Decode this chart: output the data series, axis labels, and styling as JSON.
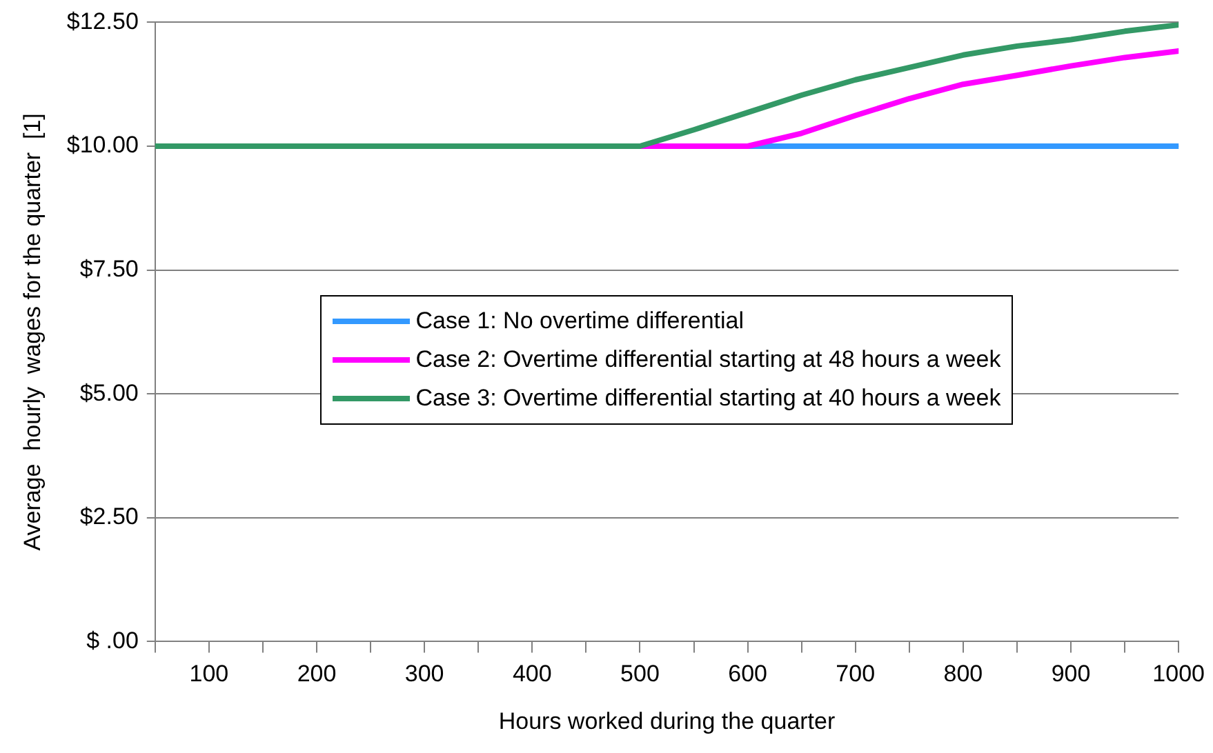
{
  "chart_data": {
    "type": "line",
    "xlabel": "Hours worked during the quarter",
    "ylabel": "Average  hourly  wages for the quarter  [1]",
    "x": [
      50,
      100,
      150,
      200,
      250,
      300,
      350,
      400,
      450,
      500,
      550,
      600,
      650,
      700,
      750,
      800,
      850,
      900,
      950,
      1000
    ],
    "xlim": [
      50,
      1000
    ],
    "xticks": [
      {
        "value": 50,
        "label": null
      },
      100,
      {
        "value": 150,
        "label": null
      },
      200,
      {
        "value": 250,
        "label": null
      },
      300,
      {
        "value": 350,
        "label": null
      },
      400,
      {
        "value": 450,
        "label": null
      },
      500,
      {
        "value": 550,
        "label": null
      },
      600,
      {
        "value": 650,
        "label": null
      },
      700,
      {
        "value": 750,
        "label": null
      },
      800,
      {
        "value": 850,
        "label": null
      },
      900,
      {
        "value": 950,
        "label": null
      },
      1000
    ],
    "ylim": [
      0,
      12.5
    ],
    "yticks": [
      {
        "value": 0,
        "label": "$ .00"
      },
      {
        "value": 2.5,
        "label": "$2.50"
      },
      {
        "value": 5,
        "label": "$5.00"
      },
      {
        "value": 7.5,
        "label": "$7.50"
      },
      {
        "value": 10,
        "label": "$10.00"
      },
      {
        "value": 12.5,
        "label": "$12.50"
      }
    ],
    "grid": "y",
    "legend": "center",
    "marker": "none",
    "line_style": "solid",
    "series": [
      {
        "name": "Case 1:  No overtime differential",
        "color": "#3399ff",
        "values": [
          null,
          null,
          null,
          null,
          null,
          null,
          null,
          null,
          null,
          null,
          null,
          10,
          10,
          10,
          10,
          10,
          10,
          10,
          10,
          10
        ]
      },
      {
        "name": "Case 2:  Overtime differential starting at 48 hours a week",
        "color": "#ff00ff",
        "values": [
          null,
          null,
          null,
          null,
          null,
          null,
          null,
          null,
          null,
          10,
          10,
          10,
          10.26,
          10.62,
          10.96,
          11.25,
          11.43,
          11.62,
          11.79,
          11.92
        ]
      },
      {
        "name": "Case 3:  Overtime differential starting at 40 hours a week",
        "color": "#339966",
        "values": [
          10,
          10,
          10,
          10,
          10,
          10,
          10,
          10,
          10,
          10,
          10.33,
          10.68,
          11.03,
          11.34,
          11.59,
          11.84,
          12.02,
          12.15,
          12.32,
          12.45
        ]
      }
    ]
  }
}
